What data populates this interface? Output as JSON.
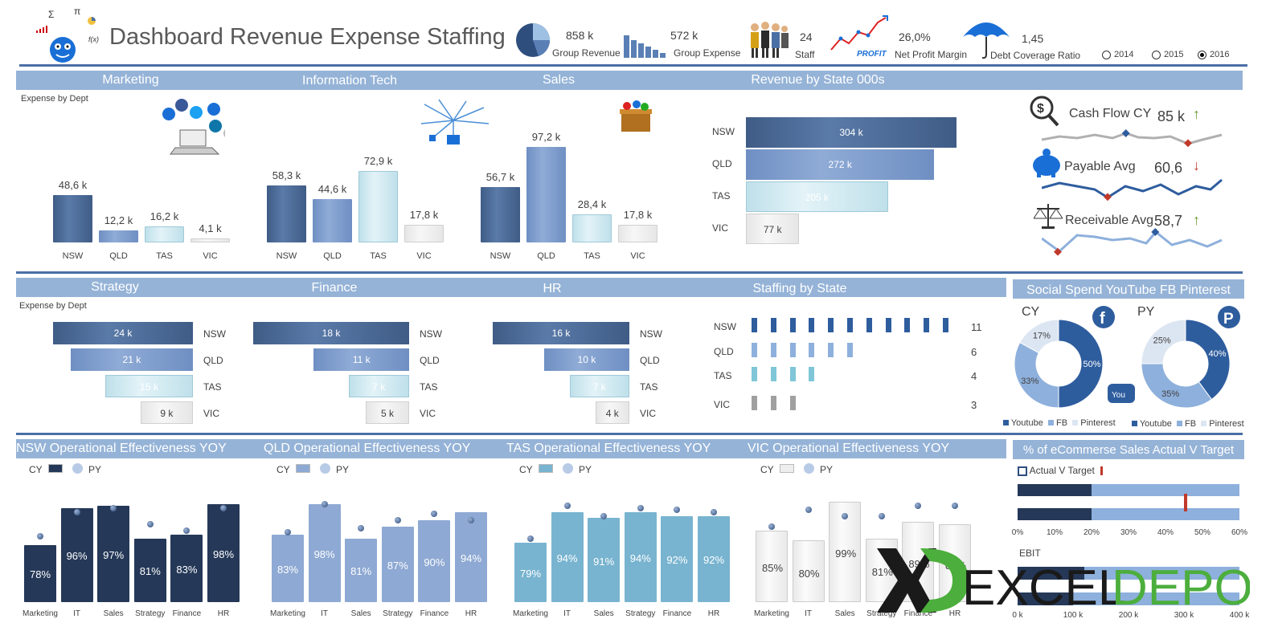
{
  "header": {
    "title": "Dashboard Revenue Expense Staffing",
    "kpis": [
      {
        "value": "858 k",
        "label": "Group Revenue",
        "icon": "pie-chart-icon"
      },
      {
        "value": "572 k",
        "label": "Group Expense",
        "icon": "bar-chart-icon"
      },
      {
        "value": "24",
        "label": "Staff",
        "icon": "people-icon"
      },
      {
        "value": "26,0%",
        "label": "Net Profit Margin",
        "icon": "profit-chart-icon"
      },
      {
        "value": "1,45",
        "label": "Debt Coverage Ratio",
        "icon": "umbrella-icon"
      }
    ],
    "years": [
      {
        "label": "2014",
        "selected": false
      },
      {
        "label": "2015",
        "selected": false
      },
      {
        "label": "2016",
        "selected": true
      }
    ]
  },
  "row1": {
    "subtitle": "Expense by Dept",
    "depts": [
      {
        "title": "Marketing",
        "cats": [
          "NSW",
          "QLD",
          "TAS",
          "VIC"
        ],
        "values": [
          48.6,
          12.2,
          16.2,
          4.1
        ],
        "labels": [
          "48,6 k",
          "12,2 k",
          "16,2 k",
          "4,1 k"
        ]
      },
      {
        "title": "Information Tech",
        "cats": [
          "NSW",
          "QLD",
          "TAS",
          "VIC"
        ],
        "values": [
          58.3,
          44.6,
          72.9,
          17.8
        ],
        "labels": [
          "58,3 k",
          "44,6 k",
          "72,9 k",
          "17,8 k"
        ]
      },
      {
        "title": "Sales",
        "cats": [
          "NSW",
          "QLD",
          "TAS",
          "VIC"
        ],
        "values": [
          56.7,
          97.2,
          28.4,
          17.8
        ],
        "labels": [
          "56,7 k",
          "97,2 k",
          "28,4 k",
          "17,8 k"
        ]
      }
    ],
    "revenue": {
      "title": "Revenue by State 000s",
      "cats": [
        "NSW",
        "QLD",
        "TAS",
        "VIC"
      ],
      "values": [
        304,
        272,
        205,
        77
      ],
      "labels": [
        "304 k",
        "272 k",
        "205 k",
        "77 k"
      ]
    },
    "cashflow": [
      {
        "label": "Cash Flow CY",
        "value": "85 k",
        "trend": "up",
        "icon": "dollar-search-icon"
      },
      {
        "label": "Payable Avg",
        "value": "60,6",
        "trend": "down",
        "icon": "piggy-bank-icon"
      },
      {
        "label": "Receivable Avg",
        "value": "58,7",
        "trend": "up",
        "icon": "scales-icon"
      }
    ]
  },
  "row2": {
    "subtitle": "Expense by Dept",
    "depts": [
      {
        "title": "Strategy",
        "cats": [
          "NSW",
          "QLD",
          "TAS",
          "VIC"
        ],
        "values": [
          24,
          21,
          15,
          9
        ],
        "labels": [
          "24 k",
          "21 k",
          "15 k",
          "9 k"
        ]
      },
      {
        "title": "Finance",
        "cats": [
          "NSW",
          "QLD",
          "TAS",
          "VIC"
        ],
        "values": [
          18,
          11,
          7,
          5
        ],
        "labels": [
          "18 k",
          "11 k",
          "7 k",
          "5 k"
        ]
      },
      {
        "title": "HR",
        "cats": [
          "NSW",
          "QLD",
          "TAS",
          "VIC"
        ],
        "values": [
          16,
          10,
          7,
          4
        ],
        "labels": [
          "16 k",
          "10 k",
          "7 k",
          "4 k"
        ]
      }
    ],
    "staffing": {
      "title": "Staffing by State",
      "cats": [
        "NSW",
        "QLD",
        "TAS",
        "VIC"
      ],
      "values": [
        11,
        6,
        4,
        3
      ],
      "labels": [
        "11",
        "6",
        "4",
        "3"
      ]
    },
    "social": {
      "title": "Social Spend YouTube FB Pinterest",
      "cy": {
        "label": "CY",
        "slices": [
          50,
          33,
          17
        ],
        "labels": [
          "50%",
          "33%",
          "17%"
        ]
      },
      "py": {
        "label": "PY",
        "slices": [
          40,
          35,
          25
        ],
        "labels": [
          "40%",
          "35%",
          "25%"
        ]
      },
      "legend": [
        "Youtube",
        "FB",
        "Pinterest"
      ]
    }
  },
  "row3": {
    "legend": {
      "cy": "CY",
      "py": "PY"
    },
    "states": [
      {
        "title": "NSW Operational Effectiveness YOY",
        "color": "#253858",
        "cy": [
          78,
          96,
          97,
          81,
          83,
          98
        ],
        "py": [
          82,
          94,
          96,
          88,
          85,
          96
        ],
        "labels": [
          "78%",
          "96%",
          "97%",
          "81%",
          "83%",
          "98%"
        ]
      },
      {
        "title": "QLD Operational Effectiveness YOY",
        "color": "#8ea9d3",
        "cy": [
          83,
          98,
          81,
          87,
          90,
          94
        ],
        "py": [
          84,
          98,
          86,
          90,
          93,
          90
        ],
        "labels": [
          "83%",
          "98%",
          "81%",
          "87%",
          "90%",
          "94%"
        ]
      },
      {
        "title": "TAS Operational Effectiveness YOY",
        "color": "#78b4d0",
        "cy": [
          79,
          94,
          91,
          94,
          92,
          92
        ],
        "py": [
          81,
          97,
          92,
          96,
          95,
          94
        ],
        "labels": [
          "79%",
          "94%",
          "91%",
          "94%",
          "92%",
          "92%"
        ]
      },
      {
        "title": "VIC Operational Effectiveness YOY",
        "color": "#eeeeee",
        "cy": [
          85,
          80,
          99,
          81,
          89,
          88
        ],
        "py": [
          87,
          95,
          92,
          92,
          97,
          97
        ],
        "labels": [
          "85%",
          "80%",
          "99%",
          "81%",
          "89%",
          "88%"
        ]
      }
    ],
    "cats": [
      "Marketing",
      "IT",
      "Sales",
      "Strategy",
      "Finance",
      "HR"
    ],
    "ecommerce": {
      "title": "% of eCommerse Sales Actual V Target",
      "legend": "Actual V Target",
      "ticks": [
        "0%",
        "10%",
        "20%",
        "30%",
        "40%",
        "50%",
        "60%"
      ],
      "actual": [
        0.25,
        0.25
      ],
      "target": 0.45,
      "ebit_label": "EBIT",
      "ebit_ticks": [
        "0 k",
        "100 k",
        "200 k",
        "300 k",
        "400 k"
      ]
    }
  },
  "watermark": "EXCELDEPO",
  "colors": {
    "band": "#95b3d7",
    "navy": "#253858",
    "accent": "#4a6fa5"
  }
}
